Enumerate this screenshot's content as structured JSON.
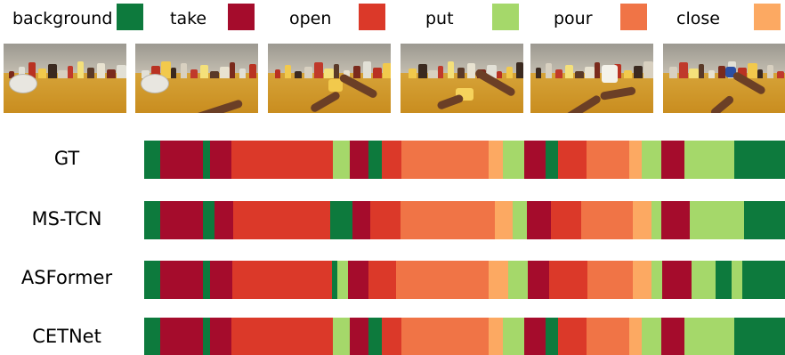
{
  "colors": {
    "background": "#0d7a3d",
    "take": "#a50c2c",
    "open": "#db3929",
    "put": "#a5d86a",
    "pour": "#f07446",
    "close": "#fca962"
  },
  "legend": [
    {
      "label": "background",
      "color": "#0d7a3d"
    },
    {
      "label": "take",
      "color": "#a50c2c"
    },
    {
      "label": "open",
      "color": "#db3929"
    },
    {
      "label": "put",
      "color": "#a5d86a"
    },
    {
      "label": "pour",
      "color": "#f07446"
    },
    {
      "label": "close",
      "color": "#fca962"
    }
  ],
  "frames": [
    {
      "name": "frame-1-scene",
      "hands": 0
    },
    {
      "name": "frame-2-scene",
      "hands": 1
    },
    {
      "name": "frame-3-scene",
      "hands": 2
    },
    {
      "name": "frame-4-scene",
      "hands": 2
    },
    {
      "name": "frame-5-scene",
      "hands": 2
    },
    {
      "name": "frame-6-scene",
      "hands": 2
    }
  ],
  "rows": [
    {
      "label": "GT",
      "segments": [
        [
          "background",
          0.0,
          0.025
        ],
        [
          "take",
          0.025,
          0.092
        ],
        [
          "background",
          0.092,
          0.103
        ],
        [
          "take",
          0.103,
          0.136
        ],
        [
          "open",
          0.136,
          0.294
        ],
        [
          "put",
          0.294,
          0.321
        ],
        [
          "take",
          0.321,
          0.35
        ],
        [
          "background",
          0.35,
          0.371
        ],
        [
          "open",
          0.371,
          0.401
        ],
        [
          "pour",
          0.401,
          0.538
        ],
        [
          "close",
          0.538,
          0.56
        ],
        [
          "put",
          0.56,
          0.593
        ],
        [
          "take",
          0.593,
          0.626
        ],
        [
          "background",
          0.626,
          0.646
        ],
        [
          "open",
          0.646,
          0.69
        ],
        [
          "pour",
          0.69,
          0.757
        ],
        [
          "close",
          0.757,
          0.776
        ],
        [
          "put",
          0.776,
          0.807
        ],
        [
          "take",
          0.807,
          0.843
        ],
        [
          "put",
          0.843,
          0.921
        ],
        [
          "background",
          0.921,
          1.0
        ]
      ]
    },
    {
      "label": "MS-TCN",
      "segments": [
        [
          "background",
          0.0,
          0.025
        ],
        [
          "take",
          0.025,
          0.092
        ],
        [
          "background",
          0.092,
          0.11
        ],
        [
          "take",
          0.11,
          0.139
        ],
        [
          "open",
          0.139,
          0.29
        ],
        [
          "background",
          0.29,
          0.325
        ],
        [
          "take",
          0.325,
          0.353
        ],
        [
          "open",
          0.353,
          0.4
        ],
        [
          "pour",
          0.4,
          0.547
        ],
        [
          "close",
          0.547,
          0.575
        ],
        [
          "put",
          0.575,
          0.597
        ],
        [
          "take",
          0.597,
          0.635
        ],
        [
          "open",
          0.635,
          0.682
        ],
        [
          "pour",
          0.682,
          0.763
        ],
        [
          "close",
          0.763,
          0.792
        ],
        [
          "put",
          0.792,
          0.807
        ],
        [
          "take",
          0.807,
          0.851
        ],
        [
          "put",
          0.851,
          0.936
        ],
        [
          "background",
          0.936,
          1.0
        ]
      ]
    },
    {
      "label": "ASFormer",
      "segments": [
        [
          "background",
          0.0,
          0.025
        ],
        [
          "take",
          0.025,
          0.092
        ],
        [
          "background",
          0.092,
          0.103
        ],
        [
          "take",
          0.103,
          0.138
        ],
        [
          "open",
          0.138,
          0.293
        ],
        [
          "background",
          0.293,
          0.301
        ],
        [
          "put",
          0.301,
          0.318
        ],
        [
          "take",
          0.318,
          0.35
        ],
        [
          "open",
          0.35,
          0.393
        ],
        [
          "pour",
          0.393,
          0.538
        ],
        [
          "close",
          0.538,
          0.568
        ],
        [
          "put",
          0.568,
          0.599
        ],
        [
          "take",
          0.599,
          0.632
        ],
        [
          "open",
          0.632,
          0.692
        ],
        [
          "pour",
          0.692,
          0.763
        ],
        [
          "close",
          0.763,
          0.792
        ],
        [
          "put",
          0.792,
          0.808
        ],
        [
          "take",
          0.808,
          0.854
        ],
        [
          "put",
          0.854,
          0.892
        ],
        [
          "background",
          0.892,
          0.917
        ],
        [
          "put",
          0.917,
          0.933
        ],
        [
          "background",
          0.933,
          1.0
        ]
      ]
    },
    {
      "label": "CETNet",
      "segments": [
        [
          "background",
          0.0,
          0.025
        ],
        [
          "take",
          0.025,
          0.092
        ],
        [
          "background",
          0.092,
          0.103
        ],
        [
          "take",
          0.103,
          0.136
        ],
        [
          "open",
          0.136,
          0.294
        ],
        [
          "put",
          0.294,
          0.321
        ],
        [
          "take",
          0.321,
          0.35
        ],
        [
          "background",
          0.35,
          0.371
        ],
        [
          "open",
          0.371,
          0.401
        ],
        [
          "pour",
          0.401,
          0.538
        ],
        [
          "close",
          0.538,
          0.56
        ],
        [
          "put",
          0.56,
          0.593
        ],
        [
          "take",
          0.593,
          0.626
        ],
        [
          "background",
          0.626,
          0.646
        ],
        [
          "open",
          0.646,
          0.69
        ],
        [
          "pour",
          0.69,
          0.757
        ],
        [
          "close",
          0.757,
          0.776
        ],
        [
          "put",
          0.776,
          0.807
        ],
        [
          "take",
          0.807,
          0.843
        ],
        [
          "put",
          0.843,
          0.921
        ],
        [
          "background",
          0.921,
          1.0
        ]
      ]
    }
  ]
}
